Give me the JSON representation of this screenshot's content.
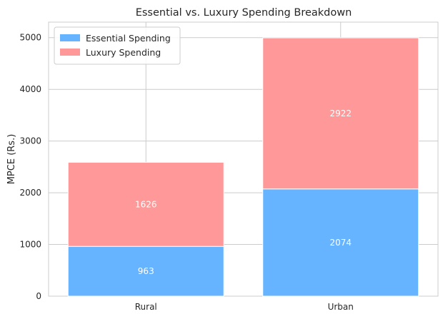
{
  "chart_data": {
    "type": "bar",
    "stacked": true,
    "title": "Essential vs. Luxury Spending Breakdown",
    "xlabel": "",
    "ylabel": "MPCE (Rs.)",
    "categories": [
      "Rural",
      "Urban"
    ],
    "series": [
      {
        "name": "Essential Spending",
        "values": [
          963,
          2074
        ],
        "color": "#66b3ff"
      },
      {
        "name": "Luxury Spending",
        "values": [
          1626,
          2922
        ],
        "color": "#ff9999"
      }
    ],
    "ylim": [
      0,
      5300
    ],
    "yticks": [
      0,
      1000,
      2000,
      3000,
      4000,
      5000
    ],
    "grid": true,
    "legend_position": "top-left"
  }
}
